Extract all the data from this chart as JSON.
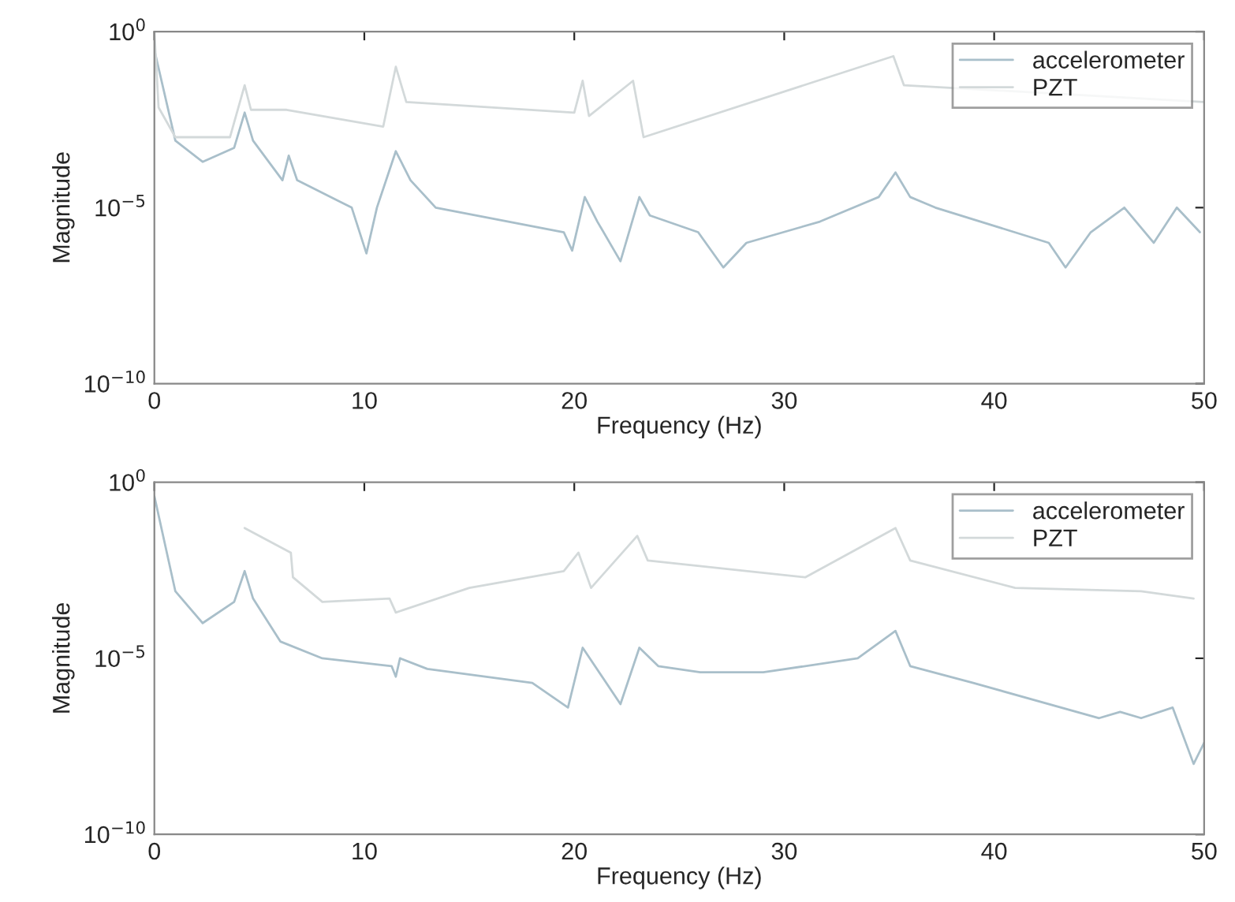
{
  "chart_data": [
    {
      "type": "line",
      "xlabel": "Frequency (Hz)",
      "ylabel": "Magnitude",
      "log": "y",
      "xlim": [
        0,
        50
      ],
      "xticks": [
        0,
        10,
        20,
        30,
        40,
        50
      ],
      "ylim": [
        1e-10,
        1
      ],
      "yticks": [
        {
          "value": 1,
          "label": "10$^{0}$"
        },
        {
          "value": 1e-05,
          "label": "10$^{−5}$"
        },
        {
          "value": 1e-10,
          "label": "10$^{−10}$"
        }
      ],
      "legend": "top right",
      "grid": false,
      "series": [
        {
          "name": "accelerometer",
          "color": "#a9bfca",
          "x": [
            0,
            1.0,
            2.3,
            3.8,
            4.3,
            4.7,
            6.1,
            6.4,
            6.8,
            9.4,
            10.1,
            10.6,
            11.5,
            12.2,
            13.4,
            19.5,
            19.9,
            20.5,
            21.1,
            22.2,
            23.1,
            23.6,
            25.9,
            27.1,
            28.2,
            31.7,
            34.5,
            35.3,
            36.0,
            37.2,
            42.6,
            43.4,
            44.6,
            46.2,
            47.6,
            48.7,
            49.8
          ],
          "values": [
            0.3,
            0.0008,
            0.0002,
            0.0005,
            0.005,
            0.0008,
            6e-05,
            0.0003,
            6e-05,
            1e-05,
            5e-07,
            1e-05,
            0.0004,
            6e-05,
            1e-05,
            2e-06,
            6e-07,
            2e-05,
            4e-06,
            3e-07,
            2e-05,
            6e-06,
            2e-06,
            2e-07,
            1e-06,
            4e-06,
            2e-05,
            0.0001,
            2e-05,
            1e-05,
            1e-06,
            2e-07,
            2e-06,
            1e-05,
            1e-06,
            1e-05,
            2e-06
          ]
        },
        {
          "name": "PZT",
          "color": "#d3d9da",
          "x": [
            0,
            0.2,
            1.0,
            2.0,
            3.6,
            4.3,
            4.6,
            6.3,
            10.9,
            11.5,
            12,
            20.0,
            20.4,
            20.7,
            22.8,
            23.3,
            35.2,
            35.7,
            40,
            50
          ],
          "values": [
            1,
            0.007,
            0.001,
            0.001,
            0.001,
            0.03,
            0.006,
            0.006,
            0.002,
            0.1,
            0.01,
            0.005,
            0.04,
            0.004,
            0.04,
            0.001,
            0.2,
            0.03,
            null,
            0.01
          ]
        }
      ]
    },
    {
      "type": "line",
      "xlabel": "Frequency (Hz)",
      "ylabel": "Magnitude",
      "log": "y",
      "xlim": [
        0,
        50
      ],
      "xticks": [
        0,
        10,
        20,
        30,
        40,
        50
      ],
      "ylim": [
        1e-10,
        1
      ],
      "yticks": [
        {
          "value": 1,
          "label": "10$^{0}$"
        },
        {
          "value": 1e-05,
          "label": "10$^{−5}$"
        },
        {
          "value": 1e-10,
          "label": "10$^{−10}$"
        }
      ],
      "legend": "top right",
      "grid": false,
      "series": [
        {
          "name": "accelerometer",
          "color": "#a9bfca",
          "x": [
            0,
            1,
            2.3,
            3.8,
            4.3,
            4.7,
            6,
            8,
            11.3,
            11.5,
            11.7,
            13,
            18,
            19.7,
            20.4,
            22.2,
            23.1,
            24,
            26,
            29,
            33.5,
            35.3,
            36,
            39,
            45,
            46,
            47,
            48.5,
            49.5,
            50
          ],
          "values": [
            0.4,
            0.0008,
            0.0001,
            0.0004,
            0.003,
            0.0005,
            3e-05,
            1e-05,
            6e-06,
            3e-06,
            1e-05,
            5e-06,
            2e-06,
            4e-07,
            2e-05,
            5e-07,
            2e-05,
            6e-06,
            4e-06,
            4e-06,
            1e-05,
            6e-05,
            6e-06,
            2e-06,
            2e-07,
            3e-07,
            2e-07,
            4e-07,
            1e-08,
            4e-08
          ]
        },
        {
          "name": "PZT",
          "color": "#d3d9da",
          "x": [
            4.3,
            6.5,
            6.6,
            8,
            11.2,
            11.5,
            15,
            19.5,
            20.2,
            20.8,
            23,
            23.5,
            31,
            35.3,
            36,
            41,
            47,
            49.5
          ],
          "values": [
            0.05,
            0.01,
            0.002,
            0.0004,
            0.0005,
            0.0002,
            0.001,
            0.003,
            0.01,
            0.001,
            0.03,
            0.006,
            0.002,
            0.05,
            0.006,
            0.001,
            0.0008,
            0.0005
          ]
        }
      ]
    }
  ]
}
